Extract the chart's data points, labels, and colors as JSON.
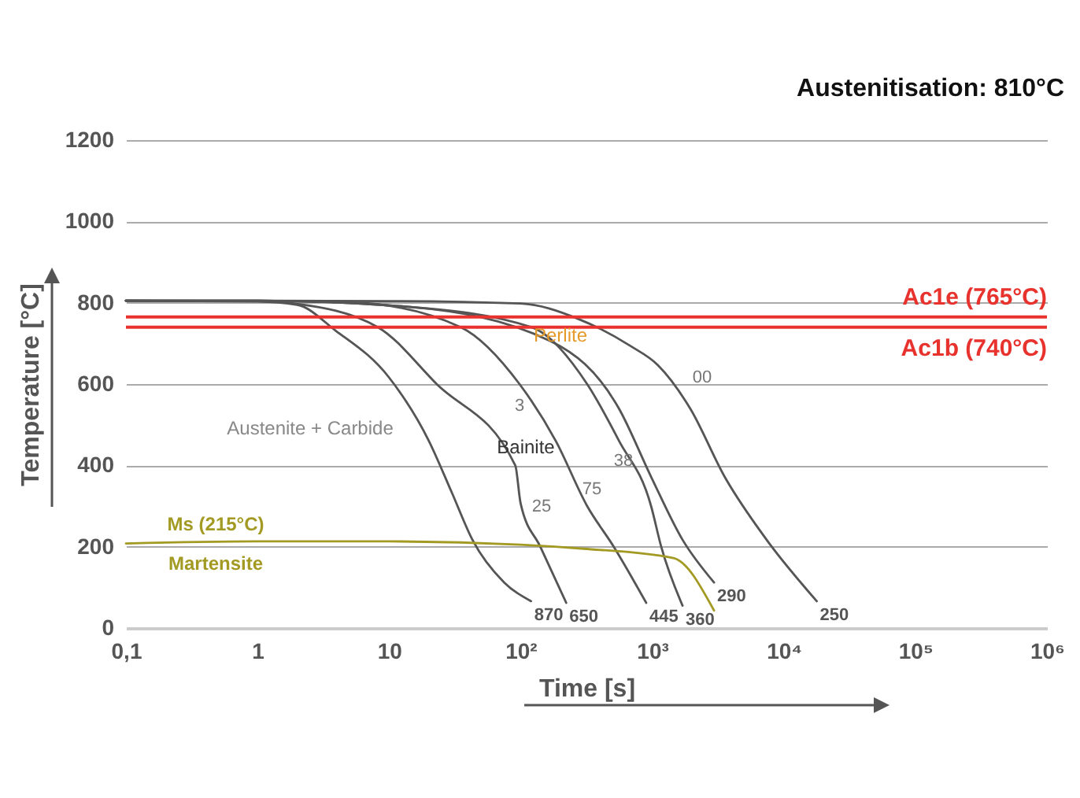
{
  "chart_data": {
    "type": "line",
    "title": "Austenitisation: 810°C",
    "xlabel": "Time [s]",
    "ylabel": "Temperature [°C]",
    "log": "x",
    "xlim": [
      0.1,
      1000000
    ],
    "ylim": [
      0,
      1200
    ],
    "xticks": [
      {
        "value": 0.1,
        "label": "0,1"
      },
      1,
      10,
      {
        "value": 100,
        "label": "10²"
      },
      {
        "value": 1000,
        "label": "10³"
      },
      {
        "value": 10000,
        "label": "10⁴"
      },
      {
        "value": 100000,
        "label": "10⁵"
      },
      {
        "value": 1000000,
        "label": "10⁶"
      }
    ],
    "yticks": [
      0,
      200,
      400,
      600,
      800,
      1000,
      1200
    ],
    "grid": "y",
    "legend": false,
    "marker": "none",
    "line_style": "solid",
    "series": [
      {
        "name": "870",
        "color": "#555555",
        "x": [
          0.1,
          1,
          2,
          3.9,
          10,
          20,
          30,
          43,
          75,
          120
        ],
        "values": [
          805,
          803,
          795,
          732,
          616,
          461,
          333,
          217,
          112,
          66
        ]
      },
      {
        "name": "650",
        "color": "#555555",
        "x": [
          0.1,
          1,
          1.9,
          8.2,
          23,
          91,
          100,
          141,
          222
        ],
        "values": [
          805,
          804,
          798,
          740,
          600,
          400,
          306,
          200,
          62
        ]
      },
      {
        "name": "445",
        "color": "#555555",
        "x": [
          0.1,
          1,
          5.7,
          35,
          98,
          185,
          320,
          510,
          900
        ],
        "values": [
          805,
          805,
          800,
          740,
          600,
          460,
          300,
          200,
          62
        ]
      },
      {
        "name": "360",
        "color": "#555555",
        "x": [
          0.1,
          1,
          14,
          120,
          320,
          560,
          980,
          1170,
          1700
        ],
        "values": [
          805,
          805,
          790,
          740,
          600,
          460,
          300,
          200,
          55
        ]
      },
      {
        "name": "290",
        "color": "#555555",
        "x": [
          0.1,
          1,
          14,
          170,
          560,
          980,
          1700,
          2950
        ],
        "values": [
          805,
          805,
          790,
          705,
          539,
          372,
          217,
          112
        ]
      },
      {
        "name": "250",
        "color": "#555555",
        "x": [
          0.1,
          10,
          100,
          275,
          680,
          1100,
          1950,
          3550,
          7400,
          17800
        ],
        "values": [
          805,
          804,
          798,
          760,
          694,
          647,
          539,
          372,
          217,
          66
        ]
      },
      {
        "color": "#a39a24",
        "x": [
          0.1,
          1,
          10,
          100,
          300,
          1450,
          2950
        ],
        "values": [
          208,
          213,
          213,
          205,
          195,
          172,
          43
        ]
      }
    ],
    "ref_lines": [
      {
        "axis": "y",
        "value": 765,
        "label": "Ac1e (765°C)",
        "color": "#e8322d"
      },
      {
        "axis": "y",
        "value": 740,
        "label": "Ac1b (740°C)",
        "color": "#e8322d"
      }
    ],
    "annotations": [
      "Austenite + Carbide",
      "Perlite",
      "Bainite",
      "Ms (215°C)",
      "Martensite",
      "25",
      "75",
      "38",
      "3",
      "00"
    ]
  }
}
